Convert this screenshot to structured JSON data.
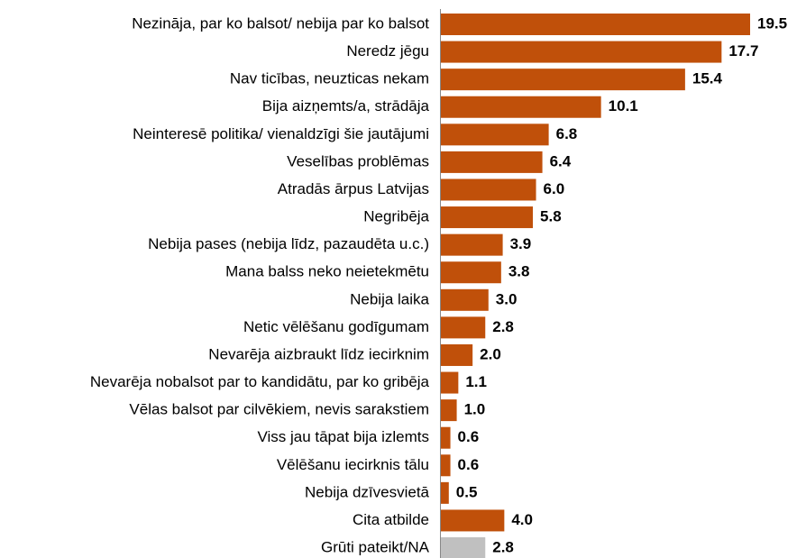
{
  "chart_data": {
    "type": "bar",
    "orientation": "horizontal",
    "categories": [
      "Nezināja, par ko balsot/ nebija par ko balsot",
      "Neredz jēgu",
      "Nav ticības, neuzticas nekam",
      "Bija aizņemts/a, strādāja",
      "Neinteresē politika/ vienaldzīgi šie jautājumi",
      "Veselības problēmas",
      "Atradās ārpus Latvijas",
      "Negribēja",
      "Nebija pases (nebija līdz, pazaudēta u.c.)",
      "Mana balss neko neietekmētu",
      "Nebija laika",
      "Netic vēlēšanu godīgumam",
      "Nevarēja aizbraukt līdz iecirknim",
      "Nevarēja nobalsot par to kandidātu, par ko gribēja",
      "Vēlas balsot par cilvēkiem, nevis sarakstiem",
      "Viss jau tāpat bija izlemts",
      "Vēlēšanu iecirknis tālu",
      "Nebija dzīvesvietā",
      "Cita atbilde",
      "Grūti pateikt/NA"
    ],
    "values": [
      19.5,
      17.7,
      15.4,
      10.1,
      6.8,
      6.4,
      6,
      5.8,
      3.9,
      3.8,
      3,
      2.8,
      2,
      1.1,
      1,
      0.6,
      0.6,
      0.5,
      4,
      2.8
    ],
    "value_labels": [
      "19.5",
      "17.7",
      "15.4",
      "10.1",
      "6.8",
      "6.4",
      "6.0",
      "5.8",
      "3.9",
      "3.8",
      "3.0",
      "2.8",
      "2.0",
      "1.1",
      "1.0",
      "0.6",
      "0.6",
      "0.5",
      "4.0",
      "2.8"
    ],
    "colors": [
      "#c0500a",
      "#c0500a",
      "#c0500a",
      "#c0500a",
      "#c0500a",
      "#c0500a",
      "#c0500a",
      "#c0500a",
      "#c0500a",
      "#c0500a",
      "#c0500a",
      "#c0500a",
      "#c0500a",
      "#c0500a",
      "#c0500a",
      "#c0500a",
      "#c0500a",
      "#c0500a",
      "#c0500a",
      "#c0c0c0"
    ]
  }
}
